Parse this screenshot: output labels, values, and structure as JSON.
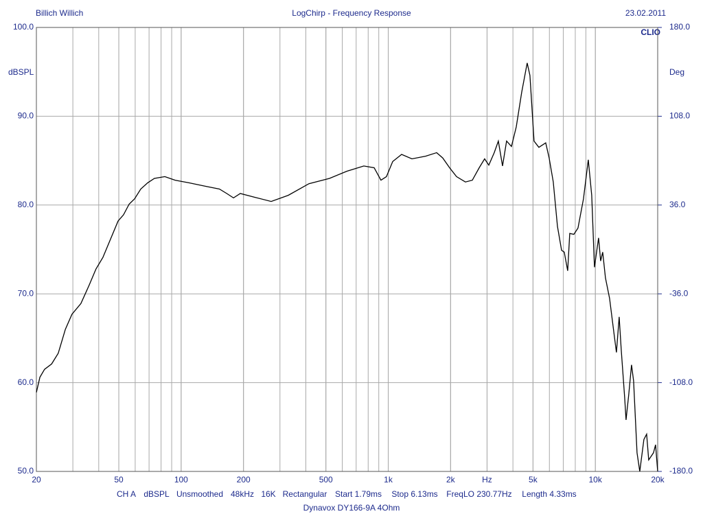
{
  "chart_data": {
    "type": "line",
    "title": "LogChirp - Frequency Response",
    "author": "Billich Willich",
    "date": "23.02.2011",
    "brand": "CLIO",
    "ylabel": "dBSPL",
    "y2label": "Deg",
    "subtitle": "Dynavox DY166-9A 4Ohm",
    "settings": [
      "CH A",
      "dBSPL",
      "Unsmoothed",
      "48kHz",
      "16K",
      "Rectangular",
      "Start 1.79ms",
      "Stop 6.13ms",
      "FreqLO 230.77Hz",
      "Length 4.33ms"
    ],
    "xscale": "log",
    "grid": true,
    "xlim": [
      20,
      20000
    ],
    "ylim": [
      50,
      100
    ],
    "y2lim": [
      -180,
      180
    ],
    "xticks": [
      20,
      50,
      100,
      200,
      500,
      {
        "value": 1000,
        "label": "1k"
      },
      {
        "value": 2000,
        "label": "2k"
      },
      {
        "value": 3000,
        "label": "Hz"
      },
      {
        "value": 5000,
        "label": "5k"
      },
      {
        "value": 10000,
        "label": "10k"
      },
      {
        "value": 20000,
        "label": "20k"
      }
    ],
    "yticks": [
      {
        "value": 50,
        "label": "50.0"
      },
      {
        "value": 60,
        "label": "60.0"
      },
      {
        "value": 70,
        "label": "70.0"
      },
      {
        "value": 80,
        "label": "80.0"
      },
      {
        "value": 90,
        "label": "90.0"
      },
      {
        "value": 100,
        "label": "100.0"
      }
    ],
    "y2ticks": [
      {
        "value": -180,
        "label": "-180.0"
      },
      {
        "value": -108,
        "label": "-108.0"
      },
      {
        "value": -36,
        "label": "-36.0"
      },
      {
        "value": 36,
        "label": "36.0"
      },
      {
        "value": 108,
        "label": "108.0"
      },
      {
        "value": 180,
        "label": "180.0"
      }
    ],
    "series": [
      {
        "name": "dBSPL",
        "color": "#000000",
        "x": [
          20,
          20.8,
          21.9,
          23.7,
          25.5,
          27.6,
          29.7,
          32.8,
          36,
          38.8,
          41.9,
          45.3,
          49.6,
          52.7,
          56.1,
          59.6,
          63.8,
          68.9,
          74.3,
          83.4,
          93.5,
          109,
          132,
          153,
          166,
          179,
          193,
          225,
          272,
          329,
          414,
          520,
          630,
          762,
          855,
          922,
          980,
          1051,
          1160,
          1301,
          1515,
          1712,
          1833,
          1978,
          2136,
          2358,
          2546,
          2748,
          2920,
          3058,
          3250,
          3402,
          3562,
          3728,
          3934,
          4150,
          4410,
          4688,
          4832,
          5060,
          5338,
          5760,
          5984,
          6264,
          6560,
          6868,
          7078,
          7354,
          7524,
          7876,
          8246,
          8764,
          9246,
          9606,
          9902,
          10366,
          10606,
          10852,
          11188,
          11714,
          12356,
          12642,
          13034,
          13336,
          13854,
          14068,
          14506,
          14954,
          15302,
          15896,
          16388,
          17158,
          17690,
          18098,
          19090,
          19530,
          20000
        ],
        "values": [
          58.9,
          60.6,
          61.5,
          62.1,
          63.3,
          66.0,
          67.7,
          68.9,
          71.0,
          72.8,
          74.1,
          76.0,
          78.2,
          78.9,
          80.1,
          80.7,
          81.8,
          82.5,
          83.0,
          83.2,
          82.8,
          82.5,
          82.1,
          81.8,
          81.3,
          80.8,
          81.3,
          80.9,
          80.4,
          81.1,
          82.4,
          83.0,
          83.8,
          84.4,
          84.2,
          82.8,
          83.2,
          84.9,
          85.7,
          85.2,
          85.5,
          85.9,
          85.3,
          84.2,
          83.2,
          82.6,
          82.8,
          84.2,
          85.2,
          84.5,
          85.9,
          87.2,
          84.4,
          87.2,
          86.6,
          88.8,
          92.7,
          96.0,
          94.6,
          87.2,
          86.5,
          87.0,
          85.3,
          82.6,
          77.6,
          74.9,
          74.7,
          72.6,
          76.8,
          76.7,
          77.4,
          80.7,
          85.1,
          81.1,
          73.0,
          76.3,
          73.7,
          74.7,
          71.8,
          69.5,
          65.2,
          63.4,
          67.4,
          63.7,
          58.3,
          55.8,
          58.7,
          62.0,
          60.2,
          52.1,
          50.0,
          53.6,
          54.2,
          51.3,
          52.1,
          53.0,
          50.0
        ]
      }
    ]
  }
}
